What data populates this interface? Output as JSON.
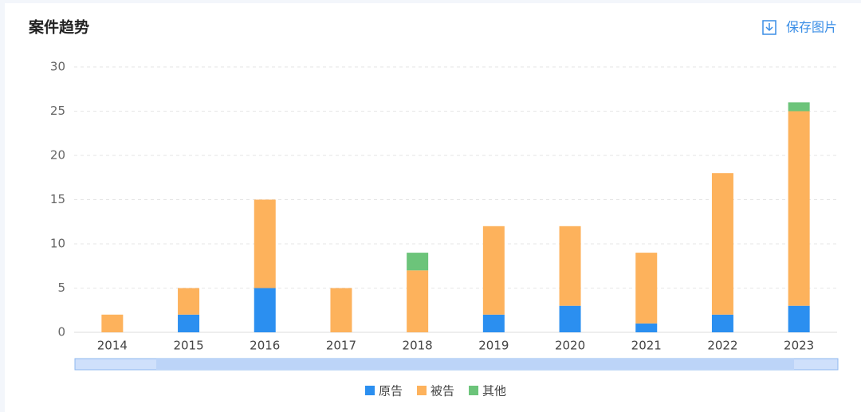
{
  "chart_data": {
    "type": "stacked-bar",
    "title": "案件趋势",
    "button": "保存图片",
    "categories": [
      "2014",
      "2015",
      "2016",
      "2017",
      "2018",
      "2019",
      "2020",
      "2021",
      "2022",
      "2023"
    ],
    "series": [
      {
        "name": "原告",
        "color": "#2b8ff0",
        "values": [
          0,
          2,
          5,
          0,
          0,
          2,
          3,
          1,
          2,
          3
        ]
      },
      {
        "name": "被告",
        "color": "#fdb25c",
        "values": [
          2,
          3,
          10,
          5,
          7,
          10,
          9,
          8,
          16,
          22
        ]
      },
      {
        "name": "其他",
        "color": "#6cc47a",
        "values": [
          0,
          0,
          0,
          0,
          2,
          0,
          0,
          0,
          0,
          1
        ]
      }
    ],
    "ylim": [
      0,
      30
    ],
    "yticks": [
      0,
      5,
      10,
      15,
      20,
      25,
      30
    ],
    "grid": true
  }
}
